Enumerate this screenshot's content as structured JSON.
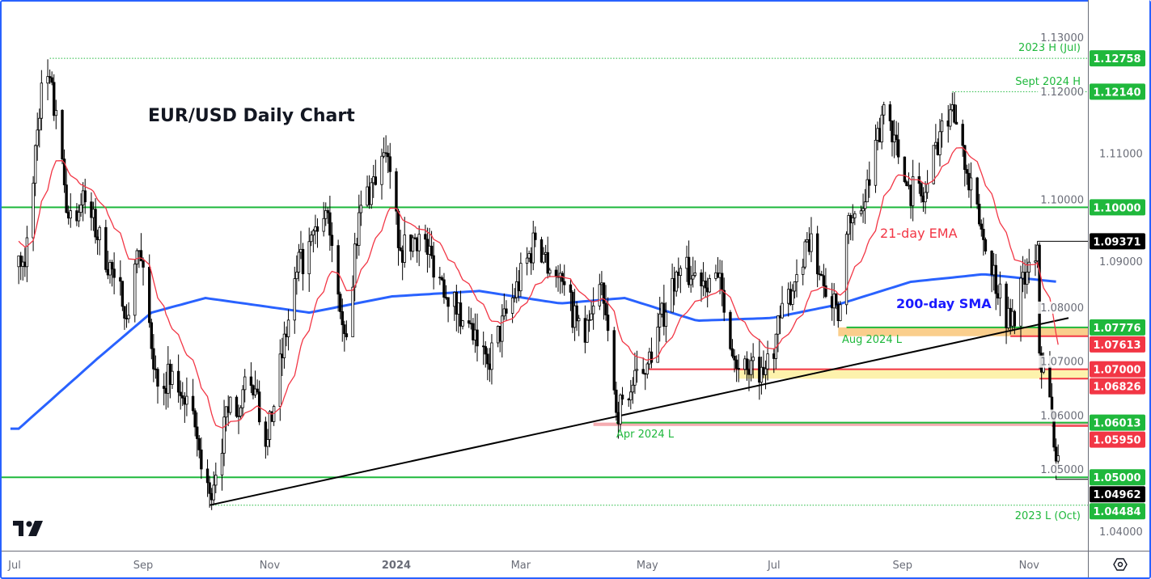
{
  "chart_data": {
    "type": "candlestick",
    "title": "EUR/USD Daily Chart",
    "ylim": [
      1.0365,
      1.1385
    ],
    "y_ticks": [
      "1.13000",
      "1.12000",
      "1.11000",
      "1.10000",
      "1.09000",
      "1.08000",
      "1.07000",
      "1.06000",
      "1.05000",
      "1.04000"
    ],
    "x_ticks": [
      {
        "label": "Jul",
        "date": "2023-07-01"
      },
      {
        "label": "Sep",
        "date": "2023-09-01"
      },
      {
        "label": "Nov",
        "date": "2023-11-01"
      },
      {
        "label": "2024",
        "date": "2024-01-01",
        "bold": true
      },
      {
        "label": "Mar",
        "date": "2024-03-01"
      },
      {
        "label": "May",
        "date": "2024-05-01"
      },
      {
        "label": "Jul",
        "date": "2024-07-01"
      },
      {
        "label": "Sep",
        "date": "2024-09-01"
      },
      {
        "label": "Nov",
        "date": "2024-11-01"
      }
    ],
    "grid": false,
    "close_path_approx": [
      [
        "2023-07-03",
        1.091
      ],
      [
        "2023-07-06",
        1.089
      ],
      [
        "2023-07-14",
        1.123
      ],
      [
        "2023-07-18",
        1.124
      ],
      [
        "2023-07-27",
        1.098
      ],
      [
        "2023-08-04",
        1.101
      ],
      [
        "2023-08-18",
        1.087
      ],
      [
        "2023-08-25",
        1.08
      ],
      [
        "2023-08-30",
        1.092
      ],
      [
        "2023-09-07",
        1.07
      ],
      [
        "2023-09-22",
        1.065
      ],
      [
        "2023-10-03",
        1.047
      ],
      [
        "2023-10-12",
        1.062
      ],
      [
        "2023-10-23",
        1.067
      ],
      [
        "2023-10-31",
        1.057
      ],
      [
        "2023-11-14",
        1.088
      ],
      [
        "2023-11-29",
        1.099
      ],
      [
        "2023-12-08",
        1.076
      ],
      [
        "2023-12-14",
        1.099
      ],
      [
        "2023-12-27",
        1.11
      ],
      [
        "2024-01-03",
        1.092
      ],
      [
        "2024-01-12",
        1.095
      ],
      [
        "2024-02-02",
        1.079
      ],
      [
        "2024-02-14",
        1.071
      ],
      [
        "2024-03-08",
        1.094
      ],
      [
        "2024-03-19",
        1.087
      ],
      [
        "2024-04-01",
        1.075
      ],
      [
        "2024-04-09",
        1.086
      ],
      [
        "2024-04-16",
        1.062
      ],
      [
        "2024-05-01",
        1.071
      ],
      [
        "2024-05-15",
        1.088
      ],
      [
        "2024-06-04",
        1.087
      ],
      [
        "2024-06-14",
        1.07
      ],
      [
        "2024-06-26",
        1.069
      ],
      [
        "2024-07-17",
        1.094
      ],
      [
        "2024-07-31",
        1.082
      ],
      [
        "2024-08-01",
        1.079
      ],
      [
        "2024-08-05",
        1.095
      ],
      [
        "2024-08-14",
        1.101
      ],
      [
        "2024-08-23",
        1.119
      ],
      [
        "2024-08-26",
        1.116
      ],
      [
        "2024-09-03",
        1.104
      ],
      [
        "2024-09-11",
        1.101
      ],
      [
        "2024-09-20",
        1.116
      ],
      [
        "2024-09-25",
        1.119
      ],
      [
        "2024-10-01",
        1.107
      ],
      [
        "2024-10-10",
        1.094
      ],
      [
        "2024-10-23",
        1.078
      ],
      [
        "2024-10-31",
        1.088
      ],
      [
        "2024-11-05",
        1.093
      ],
      [
        "2024-11-06",
        1.073
      ],
      [
        "2024-11-12",
        1.062
      ],
      [
        "2024-11-14",
        1.053
      ],
      [
        "2024-11-15",
        1.054
      ]
    ],
    "indicators": [
      {
        "name": "21-day EMA",
        "color": "#f23645",
        "period": 21
      },
      {
        "name": "200-day SMA",
        "color": "#2962ff",
        "path_approx": [
          [
            "2023-07-03",
            1.059
          ],
          [
            "2023-08-10",
            1.072
          ],
          [
            "2023-09-05",
            1.0805
          ],
          [
            "2023-10-01",
            1.0832
          ],
          [
            "2023-11-20",
            1.0805
          ],
          [
            "2023-12-30",
            1.0835
          ],
          [
            "2024-02-10",
            1.0845
          ],
          [
            "2024-03-20",
            1.0822
          ],
          [
            "2024-04-20",
            1.0832
          ],
          [
            "2024-05-25",
            1.079
          ],
          [
            "2024-06-30",
            1.0795
          ],
          [
            "2024-08-01",
            1.082
          ],
          [
            "2024-09-05",
            1.0862
          ],
          [
            "2024-10-10",
            1.0876
          ],
          [
            "2024-11-15",
            1.0862
          ]
        ]
      }
    ],
    "trendline": [
      [
        "2023-10-03",
        1.04484
      ],
      [
        "2024-11-20",
        1.0795
      ]
    ],
    "levels": [
      {
        "value": 1.12758,
        "label": "1.12758",
        "color": "#1fb83c",
        "note": "2023 H (Jul)",
        "style": "dotted",
        "from": "2023-07-18"
      },
      {
        "value": 1.1214,
        "label": "1.12140",
        "color": "#1fb83c",
        "note": "Sept 2024 H",
        "style": "dotted",
        "from": "2024-09-25"
      },
      {
        "value": 1.1,
        "label": "1.10000",
        "color": "#1fb83c",
        "style": "solid",
        "from": "start"
      },
      {
        "value": 1.09371,
        "label": "1.09371",
        "color": "#000000",
        "style": "solid",
        "from": "2024-11-05"
      },
      {
        "value": 1.07776,
        "label": "1.07776",
        "color": "#1fb83c",
        "note": "Aug 2024 L",
        "style": "solid",
        "from": "2024-08-05"
      },
      {
        "value": 1.07613,
        "label": "1.07613",
        "color": "#f23645",
        "style": "solid",
        "from": "2024-10-23"
      },
      {
        "value": 1.07,
        "label": "1.07000",
        "color": "#f23645",
        "style": "solid",
        "from": "2024-05-01"
      },
      {
        "value": 1.06826,
        "label": "1.06826",
        "color": "#f23645",
        "style": "solid",
        "from": "2024-11-06"
      },
      {
        "value": 1.06013,
        "label": "1.06013",
        "color": "#1fb83c",
        "note": "Apr 2024 L",
        "style": "solid",
        "from": "2024-04-16"
      },
      {
        "value": 1.0595,
        "label": "1.05950",
        "color": "#f23645",
        "style": "solid",
        "from": "2024-11-12"
      },
      {
        "value": 1.05,
        "label": "1.05000",
        "color": "#1fb83c",
        "style": "solid",
        "from": "start"
      },
      {
        "value": 1.04962,
        "label": "1.04962",
        "color": "#000000",
        "style": "solid",
        "from": "2024-11-14"
      },
      {
        "value": 1.04484,
        "label": "1.04484",
        "color": "#1fb83c",
        "note": "2023 L (Oct)",
        "style": "dotted",
        "from": "2023-10-03"
      }
    ],
    "zones": [
      {
        "from": "2024-08-01",
        "top": 1.07776,
        "bottom": 1.07613,
        "color": "#f9c97f"
      },
      {
        "from": "2024-06-14",
        "top": 1.07,
        "bottom": 1.06826,
        "color": "#fdf1a3"
      },
      {
        "from": "2024-04-05",
        "top": 1.06013,
        "bottom": 1.0595,
        "color": "#f4a3a8"
      }
    ]
  },
  "annotations": {
    "ema": "21-day EMA",
    "sma": "200-day SMA"
  },
  "settings_icon": "gear-hexagon-icon",
  "logo": "tradingview-logo"
}
